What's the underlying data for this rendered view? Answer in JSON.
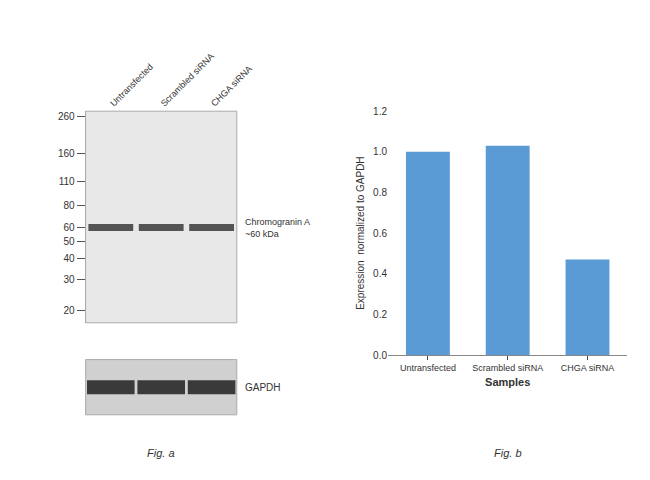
{
  "chart_data": [
    {
      "type": "blot",
      "title": "Fig. a",
      "categories": [
        "Untransfected",
        "Scrambled siRNA",
        "CHGA siRNA"
      ],
      "values": [
        60,
        60,
        60
      ],
      "color": "#3a3a3a",
      "log": "y",
      "ylim": [
        17,
        280
      ],
      "yticks": [
        260,
        160,
        110,
        80,
        60,
        50,
        40,
        30,
        20
      ],
      "annotations": [
        {
          "text": "Chromogranin A\n~60 kDa",
          "y": 60
        },
        {
          "text": "GAPDH"
        }
      ],
      "grid": false
    },
    {
      "type": "bar",
      "title": "Fig. b",
      "categories": [
        "Untransfected",
        "Scrambled siRNA",
        "CHGA siRNA"
      ],
      "values": [
        1.0,
        1.03,
        0.47
      ],
      "color": "#5b9bd5",
      "xlabel": "Samples",
      "ylabel": "Expression  normalized to GAPDH",
      "ylim": [
        0,
        1.2
      ],
      "yticks": [
        {
          "value": 0,
          "label": "0.0"
        },
        0.2,
        0.4,
        0.6,
        0.8,
        {
          "value": 1.0,
          "label": "1.0"
        },
        1.2
      ],
      "grid": false
    }
  ]
}
